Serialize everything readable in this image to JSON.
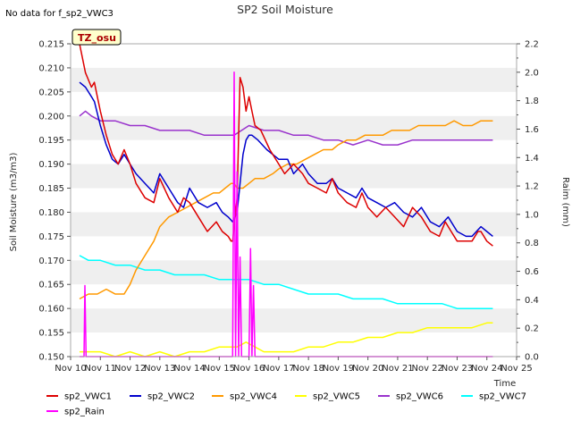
{
  "chart_data": {
    "type": "line",
    "title": "SP2 Soil Moisture",
    "no_data_note": "No data for f_sp2_VWC3",
    "tz_badge": "TZ_osu",
    "xlabel": "Time",
    "ylabel_left": "Soil Moisture (m3/m3)",
    "ylabel_right": "Raim (mm)",
    "x_ticks": [
      "Nov 10",
      "Nov 11",
      "Nov 12",
      "Nov 13",
      "Nov 14",
      "Nov 15",
      "Nov 16",
      "Nov 17",
      "Nov 18",
      "Nov 19",
      "Nov 20",
      "Nov 21",
      "Nov 22",
      "Nov 23",
      "Nov 24",
      "Nov 25"
    ],
    "xlim": [
      0,
      15
    ],
    "ylim_left": [
      0.15,
      0.215
    ],
    "ylim_right": [
      0.0,
      2.2
    ],
    "y_ticks_left": [
      "0.150",
      "0.155",
      "0.160",
      "0.165",
      "0.170",
      "0.175",
      "0.180",
      "0.185",
      "0.190",
      "0.195",
      "0.200",
      "0.205",
      "0.210",
      "0.215"
    ],
    "y_ticks_right": [
      "0.0",
      "0.2",
      "0.4",
      "0.6",
      "0.8",
      "1.0",
      "1.2",
      "1.4",
      "1.6",
      "1.8",
      "2.0",
      "2.2"
    ],
    "grid": "horizontal bands",
    "legend_position": "bottom",
    "series": [
      {
        "name": "sp2_VWC1",
        "color": "#dd0000",
        "axis": "left",
        "x": [
          0.3,
          0.5,
          0.7,
          0.8,
          0.9,
          1.0,
          1.2,
          1.4,
          1.6,
          1.8,
          2.0,
          2.2,
          2.5,
          2.8,
          3.0,
          3.3,
          3.6,
          3.8,
          4.0,
          4.3,
          4.6,
          4.9,
          5.1,
          5.3,
          5.4,
          5.45,
          5.6,
          5.7,
          5.8,
          5.9,
          6.0,
          6.1,
          6.2,
          6.4,
          6.7,
          7.0,
          7.2,
          7.5,
          7.8,
          8.0,
          8.3,
          8.6,
          8.8,
          9.0,
          9.3,
          9.6,
          9.8,
          10.0,
          10.3,
          10.6,
          10.9,
          11.2,
          11.5,
          11.8,
          12.1,
          12.4,
          12.6,
          12.8,
          13.0,
          13.2,
          13.5,
          13.7,
          13.8,
          14.0,
          14.2
        ],
        "y": [
          0.215,
          0.209,
          0.206,
          0.207,
          0.204,
          0.201,
          0.196,
          0.192,
          0.19,
          0.193,
          0.19,
          0.186,
          0.183,
          0.182,
          0.187,
          0.183,
          0.18,
          0.183,
          0.182,
          0.179,
          0.176,
          0.178,
          0.176,
          0.175,
          0.174,
          0.174,
          0.183,
          0.208,
          0.206,
          0.201,
          0.204,
          0.201,
          0.198,
          0.197,
          0.193,
          0.19,
          0.188,
          0.19,
          0.188,
          0.186,
          0.185,
          0.184,
          0.187,
          0.184,
          0.182,
          0.181,
          0.184,
          0.181,
          0.179,
          0.181,
          0.179,
          0.177,
          0.181,
          0.179,
          0.176,
          0.175,
          0.178,
          0.176,
          0.174,
          0.174,
          0.174,
          0.176,
          0.176,
          0.174,
          0.173
        ]
      },
      {
        "name": "sp2_VWC2",
        "color": "#0000cc",
        "axis": "left",
        "x": [
          0.3,
          0.5,
          0.7,
          0.8,
          1.0,
          1.2,
          1.4,
          1.6,
          1.8,
          2.0,
          2.2,
          2.5,
          2.8,
          3.0,
          3.3,
          3.6,
          3.8,
          4.0,
          4.3,
          4.6,
          4.9,
          5.1,
          5.3,
          5.45,
          5.6,
          5.7,
          5.8,
          5.9,
          6.0,
          6.1,
          6.3,
          6.6,
          7.0,
          7.3,
          7.5,
          7.8,
          8.0,
          8.3,
          8.6,
          8.8,
          9.0,
          9.3,
          9.6,
          9.8,
          10.0,
          10.3,
          10.6,
          10.9,
          11.2,
          11.5,
          11.8,
          12.1,
          12.4,
          12.7,
          13.0,
          13.3,
          13.5,
          13.8,
          14.0,
          14.2
        ],
        "y": [
          0.207,
          0.206,
          0.204,
          0.203,
          0.198,
          0.194,
          0.191,
          0.19,
          0.192,
          0.19,
          0.188,
          0.186,
          0.184,
          0.188,
          0.185,
          0.182,
          0.181,
          0.185,
          0.182,
          0.181,
          0.182,
          0.18,
          0.179,
          0.178,
          0.18,
          0.186,
          0.192,
          0.195,
          0.196,
          0.196,
          0.195,
          0.193,
          0.191,
          0.191,
          0.188,
          0.19,
          0.188,
          0.186,
          0.186,
          0.187,
          0.185,
          0.184,
          0.183,
          0.185,
          0.183,
          0.182,
          0.181,
          0.182,
          0.18,
          0.179,
          0.181,
          0.178,
          0.177,
          0.179,
          0.176,
          0.175,
          0.175,
          0.177,
          0.176,
          0.175
        ]
      },
      {
        "name": "sp2_VWC4",
        "color": "#ff9900",
        "axis": "left",
        "x": [
          0.3,
          0.6,
          0.9,
          1.2,
          1.5,
          1.8,
          2.0,
          2.2,
          2.5,
          2.8,
          3.0,
          3.3,
          3.6,
          3.9,
          4.2,
          4.5,
          4.8,
          5.0,
          5.2,
          5.4,
          5.5,
          5.6,
          5.8,
          6.0,
          6.2,
          6.5,
          6.8,
          7.0,
          7.3,
          7.6,
          7.9,
          8.2,
          8.5,
          8.8,
          9.0,
          9.3,
          9.6,
          9.9,
          10.2,
          10.5,
          10.8,
          11.1,
          11.4,
          11.7,
          12.0,
          12.3,
          12.6,
          12.9,
          13.2,
          13.5,
          13.8,
          14.0,
          14.2
        ],
        "y": [
          0.162,
          0.163,
          0.163,
          0.164,
          0.163,
          0.163,
          0.165,
          0.168,
          0.171,
          0.174,
          0.177,
          0.179,
          0.18,
          0.181,
          0.182,
          0.183,
          0.184,
          0.184,
          0.185,
          0.186,
          0.186,
          0.185,
          0.185,
          0.186,
          0.187,
          0.187,
          0.188,
          0.189,
          0.19,
          0.19,
          0.191,
          0.192,
          0.193,
          0.193,
          0.194,
          0.195,
          0.195,
          0.196,
          0.196,
          0.196,
          0.197,
          0.197,
          0.197,
          0.198,
          0.198,
          0.198,
          0.198,
          0.199,
          0.198,
          0.198,
          0.199,
          0.199,
          0.199
        ]
      },
      {
        "name": "sp2_VWC5",
        "color": "#ffff00",
        "axis": "left",
        "x": [
          0.3,
          0.6,
          1.0,
          1.5,
          2.0,
          2.5,
          3.0,
          3.5,
          4.0,
          4.5,
          5.0,
          5.3,
          5.6,
          5.9,
          6.2,
          6.5,
          7.0,
          7.5,
          8.0,
          8.5,
          9.0,
          9.5,
          10.0,
          10.5,
          11.0,
          11.5,
          12.0,
          12.5,
          13.0,
          13.5,
          14.0,
          14.2
        ],
        "y": [
          0.151,
          0.151,
          0.151,
          0.15,
          0.151,
          0.15,
          0.151,
          0.15,
          0.151,
          0.151,
          0.152,
          0.152,
          0.152,
          0.153,
          0.152,
          0.151,
          0.151,
          0.151,
          0.152,
          0.152,
          0.153,
          0.153,
          0.154,
          0.154,
          0.155,
          0.155,
          0.156,
          0.156,
          0.156,
          0.156,
          0.157,
          0.157
        ]
      },
      {
        "name": "sp2_VWC6",
        "color": "#9933cc",
        "axis": "left",
        "x": [
          0.3,
          0.5,
          0.7,
          1.0,
          1.5,
          2.0,
          2.5,
          3.0,
          3.5,
          4.0,
          4.5,
          5.0,
          5.5,
          6.0,
          6.5,
          7.0,
          7.5,
          8.0,
          8.5,
          9.0,
          9.5,
          10.0,
          10.5,
          11.0,
          11.5,
          12.0,
          12.5,
          13.0,
          13.5,
          14.0,
          14.2
        ],
        "y": [
          0.2,
          0.201,
          0.2,
          0.199,
          0.199,
          0.198,
          0.198,
          0.197,
          0.197,
          0.197,
          0.196,
          0.196,
          0.196,
          0.198,
          0.197,
          0.197,
          0.196,
          0.196,
          0.195,
          0.195,
          0.194,
          0.195,
          0.194,
          0.194,
          0.195,
          0.195,
          0.195,
          0.195,
          0.195,
          0.195,
          0.195
        ]
      },
      {
        "name": "sp2_VWC7",
        "color": "#00ffff",
        "axis": "left",
        "x": [
          0.3,
          0.6,
          1.0,
          1.5,
          2.0,
          2.5,
          3.0,
          3.5,
          4.0,
          4.5,
          5.0,
          5.5,
          6.0,
          6.5,
          7.0,
          7.5,
          8.0,
          8.5,
          9.0,
          9.5,
          10.0,
          10.5,
          11.0,
          11.5,
          12.0,
          12.5,
          13.0,
          13.5,
          14.0,
          14.2
        ],
        "y": [
          0.171,
          0.17,
          0.17,
          0.169,
          0.169,
          0.168,
          0.168,
          0.167,
          0.167,
          0.167,
          0.166,
          0.166,
          0.166,
          0.165,
          0.165,
          0.164,
          0.163,
          0.163,
          0.163,
          0.162,
          0.162,
          0.162,
          0.161,
          0.161,
          0.161,
          0.161,
          0.16,
          0.16,
          0.16,
          0.16
        ]
      },
      {
        "name": "sp2_Rain",
        "color": "#ff00ff",
        "axis": "right",
        "x": [
          0.3,
          0.45,
          0.48,
          0.52,
          0.6,
          5.3,
          5.45,
          5.5,
          5.55,
          5.6,
          5.65,
          5.7,
          5.75,
          5.8,
          5.9,
          6.0,
          6.05,
          6.1,
          6.15,
          6.2,
          6.3,
          14.2
        ],
        "y": [
          0.0,
          0.0,
          0.5,
          0.0,
          0.0,
          0.0,
          0.0,
          2.0,
          0.0,
          1.3,
          0.0,
          0.7,
          0.0,
          0.0,
          0.0,
          0.0,
          0.76,
          0.0,
          0.5,
          0.0,
          0.0,
          0.0
        ]
      }
    ]
  }
}
